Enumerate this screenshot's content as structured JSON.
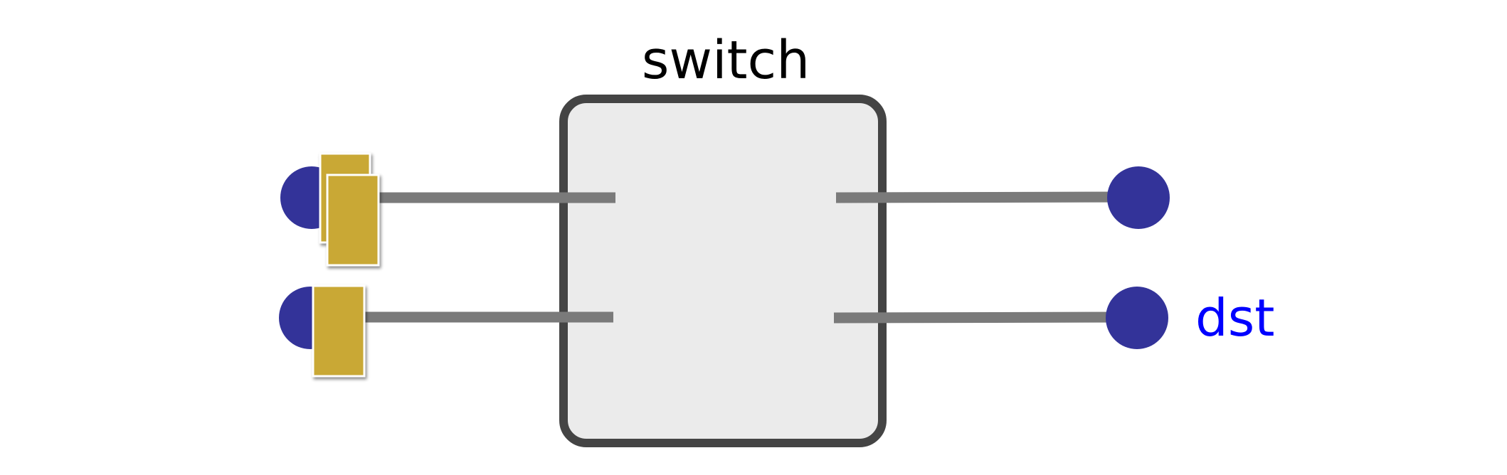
{
  "switch": {
    "title": "switch"
  },
  "ports": {
    "output_bottom_label": "dst"
  },
  "colors": {
    "node_fill": "#333399",
    "packet_fill": "#c9a834",
    "wire": "#7a7a7a",
    "switch_border": "#444444",
    "switch_fill": "#ebebeb",
    "dst_label": "#0000ff",
    "title_text": "#000000"
  },
  "packets": {
    "top_input_queue": 2,
    "bottom_input_queue": 1
  }
}
